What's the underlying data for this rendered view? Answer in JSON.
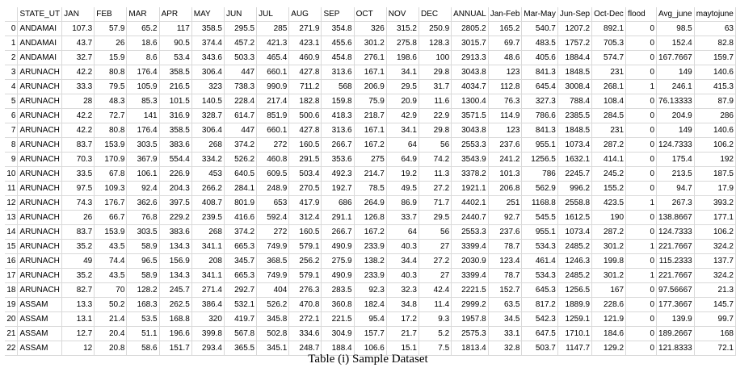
{
  "columns": [
    "",
    "STATE_UT",
    "JAN",
    "FEB",
    "MAR",
    "APR",
    "MAY",
    "JUN",
    "JUL",
    "AUG",
    "SEP",
    "OCT",
    "NOV",
    "DEC",
    "ANNUAL",
    "Jan-Feb",
    "Mar-May",
    "Jun-Sep",
    "Oct-Dec",
    "flood",
    "Avg_june",
    "maytojune"
  ],
  "rows": [
    [
      "0",
      "ANDAMAI",
      "107.3",
      "57.9",
      "65.2",
      "117",
      "358.5",
      "295.5",
      "285",
      "271.9",
      "354.8",
      "326",
      "315.2",
      "250.9",
      "2805.2",
      "165.2",
      "540.7",
      "1207.2",
      "892.1",
      "0",
      "98.5",
      "63"
    ],
    [
      "1",
      "ANDAMAI",
      "43.7",
      "26",
      "18.6",
      "90.5",
      "374.4",
      "457.2",
      "421.3",
      "423.1",
      "455.6",
      "301.2",
      "275.8",
      "128.3",
      "3015.7",
      "69.7",
      "483.5",
      "1757.2",
      "705.3",
      "0",
      "152.4",
      "82.8"
    ],
    [
      "2",
      "ANDAMAI",
      "32.7",
      "15.9",
      "8.6",
      "53.4",
      "343.6",
      "503.3",
      "465.4",
      "460.9",
      "454.8",
      "276.1",
      "198.6",
      "100",
      "2913.3",
      "48.6",
      "405.6",
      "1884.4",
      "574.7",
      "0",
      "167.7667",
      "159.7"
    ],
    [
      "3",
      "ARUNACH",
      "42.2",
      "80.8",
      "176.4",
      "358.5",
      "306.4",
      "447",
      "660.1",
      "427.8",
      "313.6",
      "167.1",
      "34.1",
      "29.8",
      "3043.8",
      "123",
      "841.3",
      "1848.5",
      "231",
      "0",
      "149",
      "140.6"
    ],
    [
      "4",
      "ARUNACH",
      "33.3",
      "79.5",
      "105.9",
      "216.5",
      "323",
      "738.3",
      "990.9",
      "711.2",
      "568",
      "206.9",
      "29.5",
      "31.7",
      "4034.7",
      "112.8",
      "645.4",
      "3008.4",
      "268.1",
      "1",
      "246.1",
      "415.3"
    ],
    [
      "5",
      "ARUNACH",
      "28",
      "48.3",
      "85.3",
      "101.5",
      "140.5",
      "228.4",
      "217.4",
      "182.8",
      "159.8",
      "75.9",
      "20.9",
      "11.6",
      "1300.4",
      "76.3",
      "327.3",
      "788.4",
      "108.4",
      "0",
      "76.13333",
      "87.9"
    ],
    [
      "6",
      "ARUNACH",
      "42.2",
      "72.7",
      "141",
      "316.9",
      "328.7",
      "614.7",
      "851.9",
      "500.6",
      "418.3",
      "218.7",
      "42.9",
      "22.9",
      "3571.5",
      "114.9",
      "786.6",
      "2385.5",
      "284.5",
      "0",
      "204.9",
      "286"
    ],
    [
      "7",
      "ARUNACH",
      "42.2",
      "80.8",
      "176.4",
      "358.5",
      "306.4",
      "447",
      "660.1",
      "427.8",
      "313.6",
      "167.1",
      "34.1",
      "29.8",
      "3043.8",
      "123",
      "841.3",
      "1848.5",
      "231",
      "0",
      "149",
      "140.6"
    ],
    [
      "8",
      "ARUNACH",
      "83.7",
      "153.9",
      "303.5",
      "383.6",
      "268",
      "374.2",
      "272",
      "160.5",
      "266.7",
      "167.2",
      "64",
      "56",
      "2553.3",
      "237.6",
      "955.1",
      "1073.4",
      "287.2",
      "0",
      "124.7333",
      "106.2"
    ],
    [
      "9",
      "ARUNACH",
      "70.3",
      "170.9",
      "367.9",
      "554.4",
      "334.2",
      "526.2",
      "460.8",
      "291.5",
      "353.6",
      "275",
      "64.9",
      "74.2",
      "3543.9",
      "241.2",
      "1256.5",
      "1632.1",
      "414.1",
      "0",
      "175.4",
      "192"
    ],
    [
      "10",
      "ARUNACH",
      "33.5",
      "67.8",
      "106.1",
      "226.9",
      "453",
      "640.5",
      "609.5",
      "503.4",
      "492.3",
      "214.7",
      "19.2",
      "11.3",
      "3378.2",
      "101.3",
      "786",
      "2245.7",
      "245.2",
      "0",
      "213.5",
      "187.5"
    ],
    [
      "11",
      "ARUNACH",
      "97.5",
      "109.3",
      "92.4",
      "204.3",
      "266.2",
      "284.1",
      "248.9",
      "270.5",
      "192.7",
      "78.5",
      "49.5",
      "27.2",
      "1921.1",
      "206.8",
      "562.9",
      "996.2",
      "155.2",
      "0",
      "94.7",
      "17.9"
    ],
    [
      "12",
      "ARUNACH",
      "74.3",
      "176.7",
      "362.6",
      "397.5",
      "408.7",
      "801.9",
      "653",
      "417.9",
      "686",
      "264.9",
      "86.9",
      "71.7",
      "4402.1",
      "251",
      "1168.8",
      "2558.8",
      "423.5",
      "1",
      "267.3",
      "393.2"
    ],
    [
      "13",
      "ARUNACH",
      "26",
      "66.7",
      "76.8",
      "229.2",
      "239.5",
      "416.6",
      "592.4",
      "312.4",
      "291.1",
      "126.8",
      "33.7",
      "29.5",
      "2440.7",
      "92.7",
      "545.5",
      "1612.5",
      "190",
      "0",
      "138.8667",
      "177.1"
    ],
    [
      "14",
      "ARUNACH",
      "83.7",
      "153.9",
      "303.5",
      "383.6",
      "268",
      "374.2",
      "272",
      "160.5",
      "266.7",
      "167.2",
      "64",
      "56",
      "2553.3",
      "237.6",
      "955.1",
      "1073.4",
      "287.2",
      "0",
      "124.7333",
      "106.2"
    ],
    [
      "15",
      "ARUNACH",
      "35.2",
      "43.5",
      "58.9",
      "134.3",
      "341.1",
      "665.3",
      "749.9",
      "579.1",
      "490.9",
      "233.9",
      "40.3",
      "27",
      "3399.4",
      "78.7",
      "534.3",
      "2485.2",
      "301.2",
      "1",
      "221.7667",
      "324.2"
    ],
    [
      "16",
      "ARUNACH",
      "49",
      "74.4",
      "96.5",
      "156.9",
      "208",
      "345.7",
      "368.5",
      "256.2",
      "275.9",
      "138.2",
      "34.4",
      "27.2",
      "2030.9",
      "123.4",
      "461.4",
      "1246.3",
      "199.8",
      "0",
      "115.2333",
      "137.7"
    ],
    [
      "17",
      "ARUNACH",
      "35.2",
      "43.5",
      "58.9",
      "134.3",
      "341.1",
      "665.3",
      "749.9",
      "579.1",
      "490.9",
      "233.9",
      "40.3",
      "27",
      "3399.4",
      "78.7",
      "534.3",
      "2485.2",
      "301.2",
      "1",
      "221.7667",
      "324.2"
    ],
    [
      "18",
      "ARUNACH",
      "82.7",
      "70",
      "128.2",
      "245.7",
      "271.4",
      "292.7",
      "404",
      "276.3",
      "283.5",
      "92.3",
      "32.3",
      "42.4",
      "2221.5",
      "152.7",
      "645.3",
      "1256.5",
      "167",
      "0",
      "97.56667",
      "21.3"
    ],
    [
      "19",
      "ASSAM",
      "13.3",
      "50.2",
      "168.3",
      "262.5",
      "386.4",
      "532.1",
      "526.2",
      "470.8",
      "360.8",
      "182.4",
      "34.8",
      "11.4",
      "2999.2",
      "63.5",
      "817.2",
      "1889.9",
      "228.6",
      "0",
      "177.3667",
      "145.7"
    ],
    [
      "20",
      "ASSAM",
      "13.1",
      "21.4",
      "53.5",
      "168.8",
      "320",
      "419.7",
      "345.8",
      "272.1",
      "221.5",
      "95.4",
      "17.2",
      "9.3",
      "1957.8",
      "34.5",
      "542.3",
      "1259.1",
      "121.9",
      "0",
      "139.9",
      "99.7"
    ],
    [
      "21",
      "ASSAM",
      "12.7",
      "20.4",
      "51.1",
      "196.6",
      "399.8",
      "567.8",
      "502.8",
      "334.6",
      "304.9",
      "157.7",
      "21.7",
      "5.2",
      "2575.3",
      "33.1",
      "647.5",
      "1710.1",
      "184.6",
      "0",
      "189.2667",
      "168"
    ],
    [
      "22",
      "ASSAM",
      "12",
      "20.8",
      "58.6",
      "151.7",
      "293.4",
      "365.5",
      "345.1",
      "248.7",
      "188.4",
      "106.6",
      "15.1",
      "7.5",
      "1813.4",
      "32.8",
      "503.7",
      "1147.7",
      "129.2",
      "0",
      "121.8333",
      "72.1"
    ]
  ],
  "caption": "Table (i) Sample Dataset"
}
